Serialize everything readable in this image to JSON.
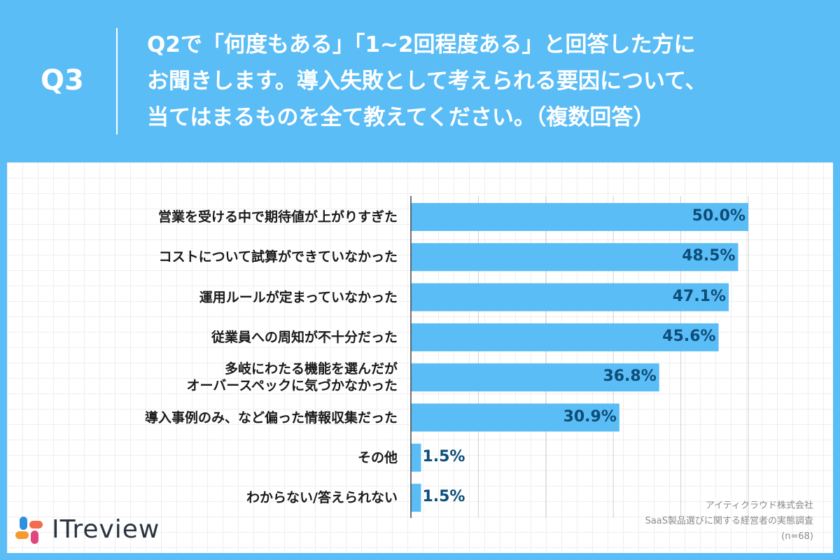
{
  "header": {
    "q_number": "Q3",
    "question_lines": [
      "Q2で「何度もある」「1~2回程度ある」と回答した方に",
      "お聞きします。導入失敗として考えられる要因について、",
      "当てはまるものを全て教えてください。（複数回答）"
    ]
  },
  "chart_data": {
    "type": "bar",
    "orientation": "horizontal",
    "categories": [
      [
        "営業を受ける中で期待値が上がりすぎた"
      ],
      [
        "コストについて試算ができていなかった"
      ],
      [
        "運用ルールが定まっていなかった"
      ],
      [
        "従業員への周知が不十分だった"
      ],
      [
        "多岐にわたる機能を選んだが",
        "オーバースペックに気づかなかった"
      ],
      [
        "導入事例のみ、など偏った情報収集だった"
      ],
      [
        "その他"
      ],
      [
        "わからない/答えられない"
      ]
    ],
    "values": [
      50.0,
      48.5,
      47.1,
      45.6,
      36.8,
      30.9,
      1.5,
      1.5
    ],
    "value_labels": [
      "50.0%",
      "48.5%",
      "47.1%",
      "45.6%",
      "36.8%",
      "30.9%",
      "1.5%",
      "1.5%"
    ],
    "xlim": [
      0,
      50
    ],
    "bar_color": "#5bbdf6",
    "grid": true
  },
  "logo": {
    "text": "ITreview"
  },
  "source": {
    "company": "アイティクラウド株式会社",
    "survey": "SaaS製品選びに関する経営者の実態調査",
    "sample": "(n=68)"
  }
}
